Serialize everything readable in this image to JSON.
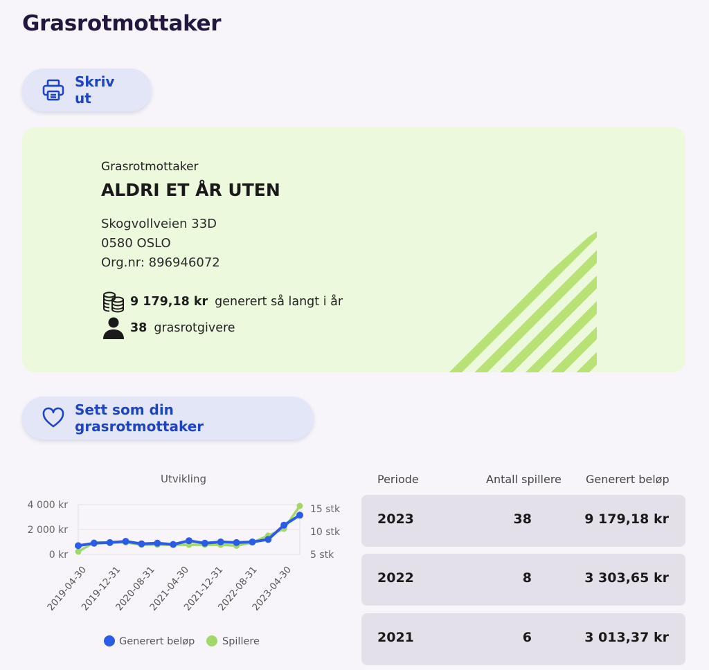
{
  "page": {
    "title": "Grasrotmottaker"
  },
  "print_button": {
    "label": "Skriv ut",
    "icon": "printer-icon"
  },
  "card": {
    "label": "Grasrotmottaker",
    "name": "ALDRI ET ÅR UTEN",
    "address_line1": "Skogvollveien 33D",
    "address_line2": "0580 OSLO",
    "org_nr": "Org.nr: 896946072",
    "generated_amount": "9 179,18 kr",
    "generated_text": "generert så langt i år",
    "givers_count": "38",
    "givers_text": "grasrotgivere",
    "background_color": "#ecf9dd",
    "stripe_color": "#b8e276"
  },
  "set_button": {
    "label": "Sett som din grasrotmottaker",
    "icon": "heart-icon"
  },
  "chart_data": {
    "type": "line",
    "title": "Utvikling",
    "x_tick_labels": [
      "2019-04-30",
      "2019-12-31",
      "2020-08-31",
      "2021-04-30",
      "2021-12-31",
      "2022-08-31",
      "2023-04-30"
    ],
    "left_axis_ticks": [
      "4 000 kr",
      "2 000 kr",
      "0 kr"
    ],
    "right_axis_ticks": [
      "15 stk",
      "10 stk",
      "5 stk"
    ],
    "left_ylim": [
      0,
      4000
    ],
    "right_ylim": [
      5,
      15
    ],
    "legend_position": "bottom",
    "series": [
      {
        "name": "Generert beløp",
        "axis": "left",
        "color": "#2b5ce6",
        "values": [
          700,
          900,
          950,
          1050,
          850,
          900,
          800,
          1100,
          900,
          1000,
          950,
          1000,
          1200,
          2350,
          3150
        ]
      },
      {
        "name": "Spillere",
        "axis": "right",
        "color": "#a2d86a",
        "values": [
          5,
          7,
          7,
          7,
          6.5,
          6.5,
          6.5,
          6.5,
          6.5,
          6.5,
          6.3,
          7,
          8.5,
          10,
          15
        ]
      }
    ]
  },
  "table": {
    "headers": {
      "period": "Periode",
      "players": "Antall spillere",
      "amount": "Generert beløp"
    },
    "rows": [
      {
        "year": "2023",
        "players": "38",
        "amount": "9 179,18 kr"
      },
      {
        "year": "2022",
        "players": "8",
        "amount": "3 303,65 kr"
      },
      {
        "year": "2021",
        "players": "6",
        "amount": "3 013,37 kr"
      }
    ]
  }
}
